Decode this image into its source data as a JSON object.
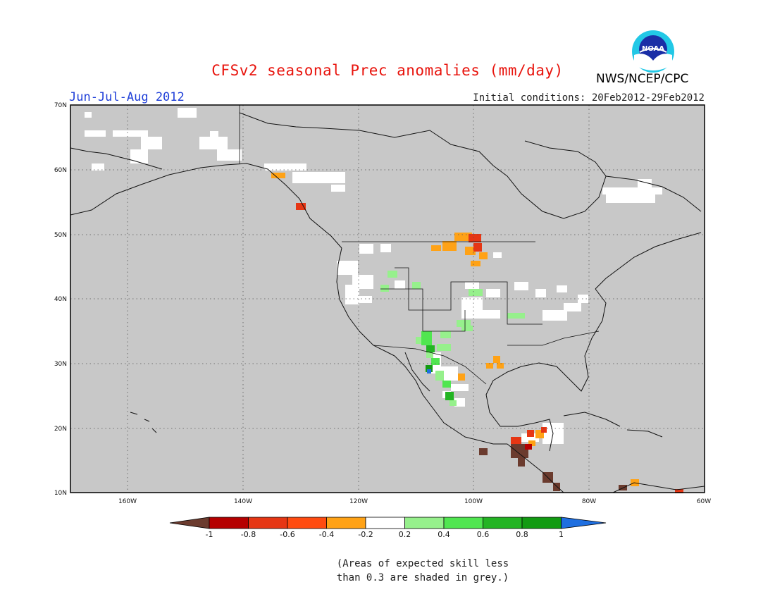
{
  "title": "CFSv2 seasonal Prec anomalies (mm/day)",
  "season": "Jun-Jul-Aug 2012",
  "agency": "NWS/NCEP/CPC",
  "logo_text": "NOAA",
  "initial_conditions": "Initial conditions: 20Feb2012-29Feb2012",
  "footnote": {
    "line1": "(Areas of expected skill less",
    "line2": "than 0.3 are shaded in grey.)"
  },
  "map": {
    "lat_labels": [
      "70N",
      "60N",
      "50N",
      "40N",
      "30N",
      "20N",
      "10N"
    ],
    "lon_labels": [
      "160W",
      "140W",
      "120W",
      "100W",
      "80W",
      "60W"
    ],
    "grey_color": "#c8c8c8"
  },
  "colorbar": {
    "labels": [
      "-1",
      "-0.8",
      "-0.6",
      "-0.4",
      "-0.2",
      "0.2",
      "0.4",
      "0.6",
      "0.8",
      "1"
    ],
    "colors": [
      "#6b3b2e",
      "#b50000",
      "#e63614",
      "#ff4b10",
      "#ffa216",
      "#ffffff",
      "#96f08c",
      "#50e650",
      "#23b423",
      "#129b12",
      "#1f6fe0"
    ]
  }
}
